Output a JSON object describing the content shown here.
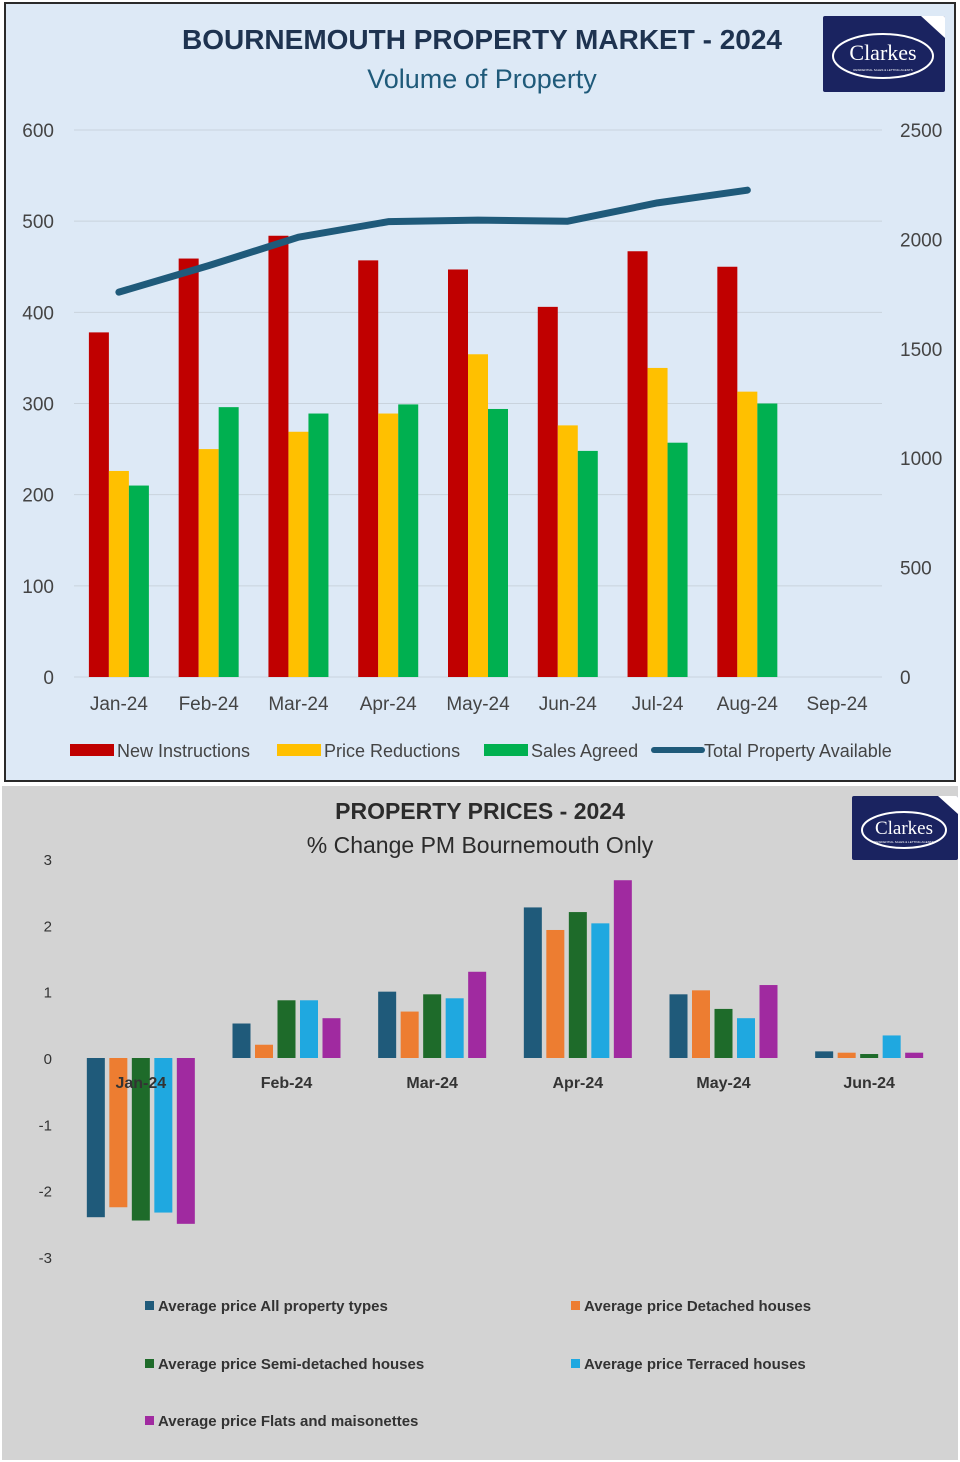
{
  "chart_data": [
    {
      "type": "bar",
      "title": "BOURNEMOUTH PROPERTY MARKET - 2024",
      "subtitle": "Volume of Property",
      "categories": [
        "Jan-24",
        "Feb-24",
        "Mar-24",
        "Apr-24",
        "May-24",
        "Jun-24",
        "Jul-24",
        "Aug-24",
        "Sep-24"
      ],
      "series": [
        {
          "name": "New Instructions",
          "type": "bar",
          "axis": "left",
          "color": "#c00000",
          "values": [
            378,
            459,
            484,
            457,
            447,
            406,
            467,
            450,
            null
          ]
        },
        {
          "name": "Price Reductions",
          "type": "bar",
          "axis": "left",
          "color": "#ffc000",
          "values": [
            226,
            250,
            269,
            289,
            354,
            276,
            339,
            313,
            null
          ]
        },
        {
          "name": "Sales Agreed",
          "type": "bar",
          "axis": "left",
          "color": "#00b050",
          "values": [
            210,
            296,
            289,
            299,
            294,
            248,
            257,
            300,
            null
          ]
        },
        {
          "name": "Total Property Available",
          "type": "line",
          "axis": "right",
          "color": "#1f5a7a",
          "values": [
            1759,
            1880,
            2010,
            2081,
            2088,
            2083,
            2167,
            2225,
            null
          ]
        }
      ],
      "ylim": [
        0,
        600
      ],
      "y_ticks": [
        0,
        100,
        200,
        300,
        400,
        500,
        600
      ],
      "y2lim": [
        0,
        2500
      ],
      "y2_ticks": [
        0,
        500,
        1000,
        1500,
        2000,
        2500
      ],
      "grid": true,
      "legend": "bottom"
    },
    {
      "type": "bar",
      "title": "PROPERTY PRICES - 2024",
      "subtitle": "% Change PM  Bournemouth Only",
      "categories": [
        "Jan-24",
        "Feb-24",
        "Mar-24",
        "Apr-24",
        "May-24",
        "Jun-24"
      ],
      "series": [
        {
          "name": "Average price All property types",
          "color": "#1f5a7a",
          "values": [
            -2.4,
            0.52,
            1.0,
            2.27,
            0.96,
            0.1
          ]
        },
        {
          "name": "Average price Detached houses",
          "color": "#ed7d31",
          "values": [
            -2.25,
            0.2,
            0.7,
            1.93,
            1.02,
            0.08
          ]
        },
        {
          "name": "Average price Semi-detached houses",
          "color": "#1e6b2a",
          "values": [
            -2.45,
            0.87,
            0.96,
            2.2,
            0.74,
            0.06
          ]
        },
        {
          "name": "Average price Terraced houses",
          "color": "#1fa8e0",
          "values": [
            -2.33,
            0.87,
            0.9,
            2.03,
            0.6,
            0.34
          ]
        },
        {
          "name": "Average price Flats and maisonettes",
          "color": "#a02aa0",
          "values": [
            -2.5,
            0.6,
            1.3,
            2.68,
            1.1,
            0.08
          ]
        }
      ],
      "ylim": [
        -3,
        3
      ],
      "y_ticks": [
        -3,
        -2,
        -1,
        0,
        1,
        2,
        3
      ],
      "grid": false,
      "legend": "bottom"
    }
  ],
  "logo": {
    "text": "Clarkes",
    "tagline": "RESIDENTIAL SALES & LETTING AGENTS"
  }
}
